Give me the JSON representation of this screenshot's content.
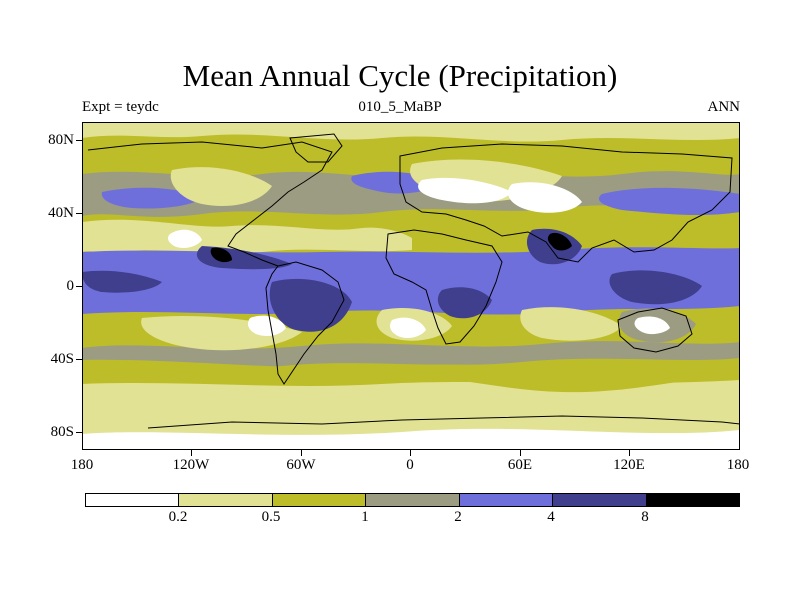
{
  "title": "Mean Annual Cycle (Precipitation)",
  "subtitle_left": "Expt = teydc",
  "subtitle_center": "010_5_MaBP",
  "subtitle_right": "ANN",
  "lat_labels": [
    "80N",
    "40N",
    "0",
    "40S",
    "80S"
  ],
  "lon_labels": [
    "180",
    "120W",
    "60W",
    "0",
    "60E",
    "120E",
    "180"
  ],
  "colorbar": {
    "levels": [
      "0.2",
      "0.5",
      "1",
      "2",
      "4",
      "8"
    ],
    "colors": [
      "#ffffff",
      "#e2e294",
      "#bdbd2a",
      "#9c9c82",
      "#6f6fdc",
      "#3f3f8e",
      "#000000"
    ]
  }
}
